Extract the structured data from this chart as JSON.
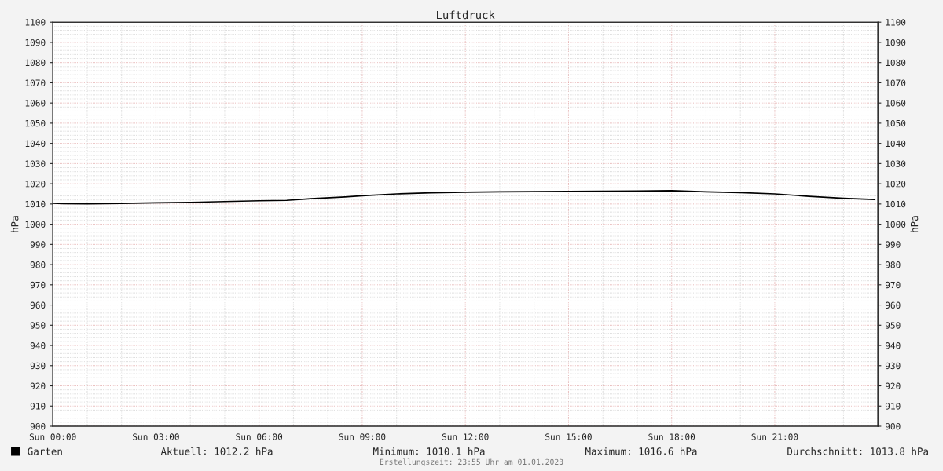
{
  "chart_data": {
    "type": "line",
    "title": "Luftdruck",
    "ylabel": "hPa",
    "y2label": "hPa",
    "x": [
      "2023-01-01T00:00",
      "2023-01-01T00:18",
      "2023-01-01T01:00",
      "2023-01-01T02:00",
      "2023-01-01T03:00",
      "2023-01-01T04:00",
      "2023-01-01T05:00",
      "2023-01-01T06:00",
      "2023-01-01T06:48",
      "2023-01-01T07:30",
      "2023-01-01T08:30",
      "2023-01-01T09:00",
      "2023-01-01T10:00",
      "2023-01-01T11:00",
      "2023-01-01T12:00",
      "2023-01-01T13:00",
      "2023-01-01T14:00",
      "2023-01-01T15:00",
      "2023-01-01T16:00",
      "2023-01-01T17:00",
      "2023-01-01T18:00",
      "2023-01-01T18:30",
      "2023-01-01T19:00",
      "2023-01-01T20:00",
      "2023-01-01T21:00",
      "2023-01-01T22:00",
      "2023-01-01T23:00",
      "2023-01-01T23:54"
    ],
    "series": [
      {
        "name": "Garten",
        "color": "#000000",
        "values": [
          1010.4,
          1010.2,
          1010.1,
          1010.3,
          1010.6,
          1010.8,
          1011.2,
          1011.6,
          1011.8,
          1012.6,
          1013.5,
          1014.1,
          1015.0,
          1015.5,
          1015.8,
          1016.0,
          1016.1,
          1016.2,
          1016.3,
          1016.4,
          1016.6,
          1016.3,
          1016.0,
          1015.6,
          1015.0,
          1013.8,
          1012.8,
          1012.2
        ]
      }
    ],
    "xlim": [
      "2023-01-01T00:00",
      "2023-01-02T00:00"
    ],
    "xticks": [
      {
        "value": "2023-01-01T00:00",
        "label": "Sun 00:00"
      },
      {
        "value": "2023-01-01T03:00",
        "label": "Sun 03:00"
      },
      {
        "value": "2023-01-01T06:00",
        "label": "Sun 06:00"
      },
      {
        "value": "2023-01-01T09:00",
        "label": "Sun 09:00"
      },
      {
        "value": "2023-01-01T12:00",
        "label": "Sun 12:00"
      },
      {
        "value": "2023-01-01T15:00",
        "label": "Sun 15:00"
      },
      {
        "value": "2023-01-01T18:00",
        "label": "Sun 18:00"
      },
      {
        "value": "2023-01-01T21:00",
        "label": "Sun 21:00"
      }
    ],
    "ylim": [
      900,
      1100
    ],
    "yticks": [
      900,
      910,
      920,
      930,
      940,
      950,
      960,
      970,
      980,
      990,
      1000,
      1010,
      1020,
      1030,
      1040,
      1050,
      1060,
      1070,
      1080,
      1090,
      1100
    ],
    "y2lim": [
      900,
      1100
    ],
    "y2ticks": [
      900,
      910,
      920,
      930,
      940,
      950,
      960,
      970,
      980,
      990,
      1000,
      1010,
      1020,
      1030,
      1040,
      1050,
      1060,
      1070,
      1080,
      1090,
      1100
    ],
    "grid": true,
    "legend": "bottom left",
    "marker": "none",
    "line_style": "solid",
    "annotations": [
      "Aktuell: 1012.2 hPa",
      "Minimum: 1010.1 hPa",
      "Maximum: 1016.6 hPa",
      "Durchschnitt: 1013.8 hPa",
      "Erstellungszeit: 23:55 Uhr am 01.01.2023"
    ]
  }
}
